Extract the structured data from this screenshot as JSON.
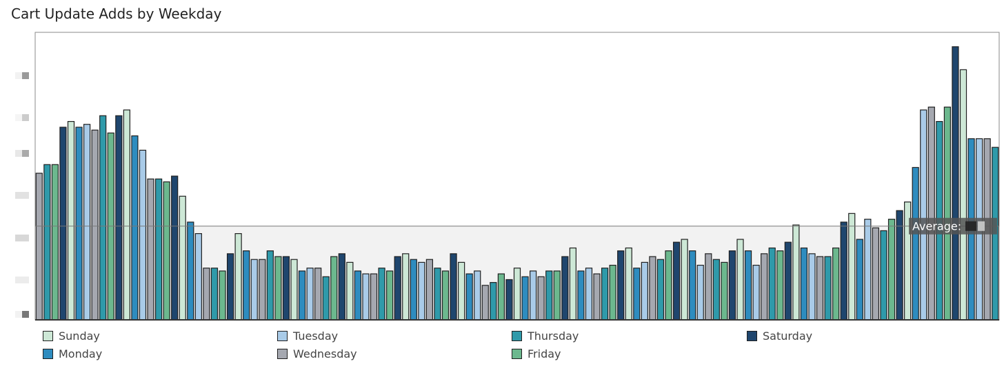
{
  "chart_data": {
    "type": "bar",
    "title": "Cart Update Adds by Weekday",
    "xlabel": "",
    "ylabel": "",
    "ylim": [
      0,
      100
    ],
    "grid": false,
    "legend_placement": "bottom",
    "reference_line": {
      "label": "Average:",
      "value": 32.6
    },
    "series": [
      {
        "name": "Sunday",
        "color": "#cde8d6"
      },
      {
        "name": "Monday",
        "color": "#2e8cbf"
      },
      {
        "name": "Tuesday",
        "color": "#a9cbe8"
      },
      {
        "name": "Wednesday",
        "color": "#a5a8b0"
      },
      {
        "name": "Thursday",
        "color": "#2f9aaa"
      },
      {
        "name": "Friday",
        "color": "#6cb88e"
      },
      {
        "name": "Saturday",
        "color": "#1f466e"
      }
    ],
    "bars": [
      [
        3,
        51
      ],
      [
        4,
        54
      ],
      [
        5,
        54
      ],
      [
        6,
        67
      ],
      [
        0,
        69
      ],
      [
        1,
        67
      ],
      [
        2,
        68
      ],
      [
        3,
        66
      ],
      [
        4,
        71
      ],
      [
        5,
        65
      ],
      [
        6,
        71
      ],
      [
        0,
        73
      ],
      [
        1,
        64
      ],
      [
        2,
        59
      ],
      [
        3,
        49
      ],
      [
        4,
        49
      ],
      [
        5,
        48
      ],
      [
        6,
        50
      ],
      [
        0,
        43
      ],
      [
        1,
        34
      ],
      [
        2,
        30
      ],
      [
        3,
        18
      ],
      [
        4,
        18
      ],
      [
        5,
        17
      ],
      [
        6,
        23
      ],
      [
        0,
        30
      ],
      [
        1,
        24
      ],
      [
        2,
        21
      ],
      [
        3,
        21
      ],
      [
        4,
        24
      ],
      [
        5,
        22
      ],
      [
        6,
        22
      ],
      [
        0,
        21
      ],
      [
        1,
        17
      ],
      [
        2,
        18
      ],
      [
        3,
        18
      ],
      [
        4,
        15
      ],
      [
        5,
        22
      ],
      [
        6,
        23
      ],
      [
        0,
        20
      ],
      [
        1,
        17
      ],
      [
        2,
        16
      ],
      [
        3,
        16
      ],
      [
        4,
        18
      ],
      [
        5,
        17
      ],
      [
        6,
        22
      ],
      [
        0,
        23
      ],
      [
        1,
        21
      ],
      [
        2,
        20
      ],
      [
        3,
        21
      ],
      [
        4,
        18
      ],
      [
        5,
        17
      ],
      [
        6,
        23
      ],
      [
        0,
        20
      ],
      [
        1,
        16
      ],
      [
        2,
        17
      ],
      [
        3,
        12
      ],
      [
        4,
        13
      ],
      [
        5,
        16
      ],
      [
        6,
        14
      ],
      [
        0,
        18
      ],
      [
        1,
        15
      ],
      [
        2,
        17
      ],
      [
        3,
        15
      ],
      [
        4,
        17
      ],
      [
        5,
        17
      ],
      [
        6,
        22
      ],
      [
        0,
        25
      ],
      [
        1,
        17
      ],
      [
        2,
        18
      ],
      [
        3,
        16
      ],
      [
        4,
        18
      ],
      [
        5,
        19
      ],
      [
        6,
        24
      ],
      [
        0,
        25
      ],
      [
        1,
        18
      ],
      [
        2,
        20
      ],
      [
        3,
        22
      ],
      [
        4,
        21
      ],
      [
        5,
        24
      ],
      [
        6,
        27
      ],
      [
        0,
        28
      ],
      [
        1,
        24
      ],
      [
        2,
        19
      ],
      [
        3,
        23
      ],
      [
        4,
        21
      ],
      [
        5,
        20
      ],
      [
        6,
        24
      ],
      [
        0,
        28
      ],
      [
        1,
        24
      ],
      [
        2,
        19
      ],
      [
        3,
        23
      ],
      [
        4,
        25
      ],
      [
        5,
        24
      ],
      [
        6,
        27
      ],
      [
        0,
        33
      ],
      [
        1,
        25
      ],
      [
        2,
        23
      ],
      [
        3,
        22
      ],
      [
        4,
        22
      ],
      [
        5,
        25
      ],
      [
        6,
        34
      ],
      [
        0,
        37
      ],
      [
        1,
        28
      ],
      [
        2,
        35
      ],
      [
        3,
        32
      ],
      [
        4,
        31
      ],
      [
        5,
        35
      ],
      [
        6,
        38
      ],
      [
        0,
        41
      ],
      [
        1,
        53
      ],
      [
        2,
        73
      ],
      [
        3,
        74
      ],
      [
        4,
        69
      ],
      [
        5,
        74
      ],
      [
        6,
        95
      ],
      [
        0,
        87
      ],
      [
        1,
        63
      ],
      [
        2,
        63
      ],
      [
        3,
        63
      ],
      [
        4,
        60
      ]
    ]
  }
}
